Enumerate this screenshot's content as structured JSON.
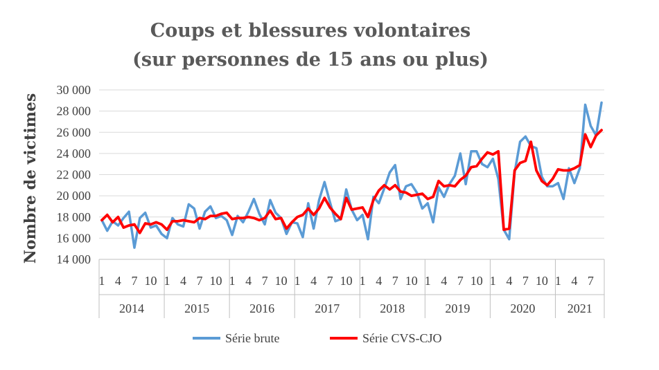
{
  "chart_data": {
    "type": "line",
    "title_lines": [
      "Coups et blessures volontaires",
      "(sur personnes de 15 ans ou plus)"
    ],
    "ylabel": "Nombre de victimes",
    "xlabel": "",
    "ylim": [
      14000,
      30000
    ],
    "y_ticks": [
      14000,
      16000,
      18000,
      20000,
      22000,
      24000,
      26000,
      28000,
      30000
    ],
    "y_tick_labels": [
      "14 000",
      "16 000",
      "18 000",
      "20 000",
      "22 000",
      "24 000",
      "26 000",
      "28 000",
      "30 000"
    ],
    "month_tick_values": [
      1,
      4,
      7,
      10
    ],
    "years": [
      {
        "label": "2014",
        "months": 12,
        "month_labels": [
          "1",
          "4",
          "7",
          "10"
        ]
      },
      {
        "label": "2015",
        "months": 12,
        "month_labels": [
          "1",
          "4",
          "7",
          "10"
        ]
      },
      {
        "label": "2016",
        "months": 12,
        "month_labels": [
          "1",
          "4",
          "7",
          "10"
        ]
      },
      {
        "label": "2017",
        "months": 12,
        "month_labels": [
          "1",
          "4",
          "7",
          "10"
        ]
      },
      {
        "label": "2018",
        "months": 12,
        "month_labels": [
          "1",
          "4",
          "7",
          "10"
        ]
      },
      {
        "label": "2019",
        "months": 12,
        "month_labels": [
          "1",
          "4",
          "7",
          "10"
        ]
      },
      {
        "label": "2020",
        "months": 12,
        "month_labels": [
          "1",
          "4",
          "7",
          "10"
        ]
      },
      {
        "label": "2021",
        "months": 9,
        "month_labels": [
          "1",
          "4",
          "7"
        ]
      }
    ],
    "grid": "horizontal",
    "legend_position": "bottom",
    "series": [
      {
        "name": "Série brute",
        "color": "#5b9bd5",
        "values": [
          17700,
          16700,
          17600,
          17200,
          17900,
          18500,
          15100,
          17900,
          18400,
          17000,
          17200,
          16400,
          16000,
          17900,
          17300,
          17100,
          19200,
          18800,
          16900,
          18500,
          19000,
          17900,
          18100,
          17700,
          16300,
          18100,
          17500,
          18500,
          19700,
          18300,
          17300,
          19600,
          18400,
          17900,
          16400,
          17500,
          17400,
          16100,
          19300,
          16900,
          19600,
          21300,
          19400,
          17600,
          17800,
          20600,
          18700,
          17700,
          18200,
          15900,
          19900,
          19300,
          20700,
          22200,
          22900,
          19700,
          20900,
          21100,
          20300,
          18800,
          19300,
          17500,
          20800,
          19900,
          21100,
          21900,
          24000,
          21100,
          24200,
          24200,
          23000,
          22700,
          23500,
          21600,
          16800,
          15900,
          22200,
          25100,
          25600,
          24700,
          24500,
          21800,
          20900,
          20900,
          21200,
          19700,
          22600,
          21200,
          22600,
          28600,
          26600,
          25700,
          28800
        ]
      },
      {
        "name": "Série CVS-CJO",
        "color": "#ff0000",
        "values": [
          17700,
          18200,
          17500,
          18000,
          17000,
          17200,
          17300,
          16500,
          17400,
          17300,
          17500,
          17300,
          16800,
          17600,
          17600,
          17700,
          17600,
          17500,
          17900,
          17800,
          18100,
          18100,
          18300,
          18400,
          17800,
          17900,
          17900,
          18000,
          17900,
          17700,
          17900,
          18600,
          17800,
          17900,
          16900,
          17500,
          18000,
          18200,
          18800,
          18200,
          18800,
          19800,
          18900,
          18300,
          17800,
          19800,
          18700,
          18800,
          18900,
          18000,
          19600,
          20500,
          21000,
          20600,
          21000,
          20400,
          20300,
          20000,
          20100,
          20200,
          19700,
          19900,
          21400,
          20900,
          21000,
          20900,
          21500,
          21900,
          22700,
          22800,
          23500,
          24100,
          23900,
          24200,
          16800,
          16900,
          22400,
          23100,
          23300,
          25100,
          22400,
          21400,
          21000,
          21600,
          22500,
          22400,
          22400,
          22600,
          22900,
          25800,
          24600,
          25700,
          26200
        ]
      }
    ]
  }
}
